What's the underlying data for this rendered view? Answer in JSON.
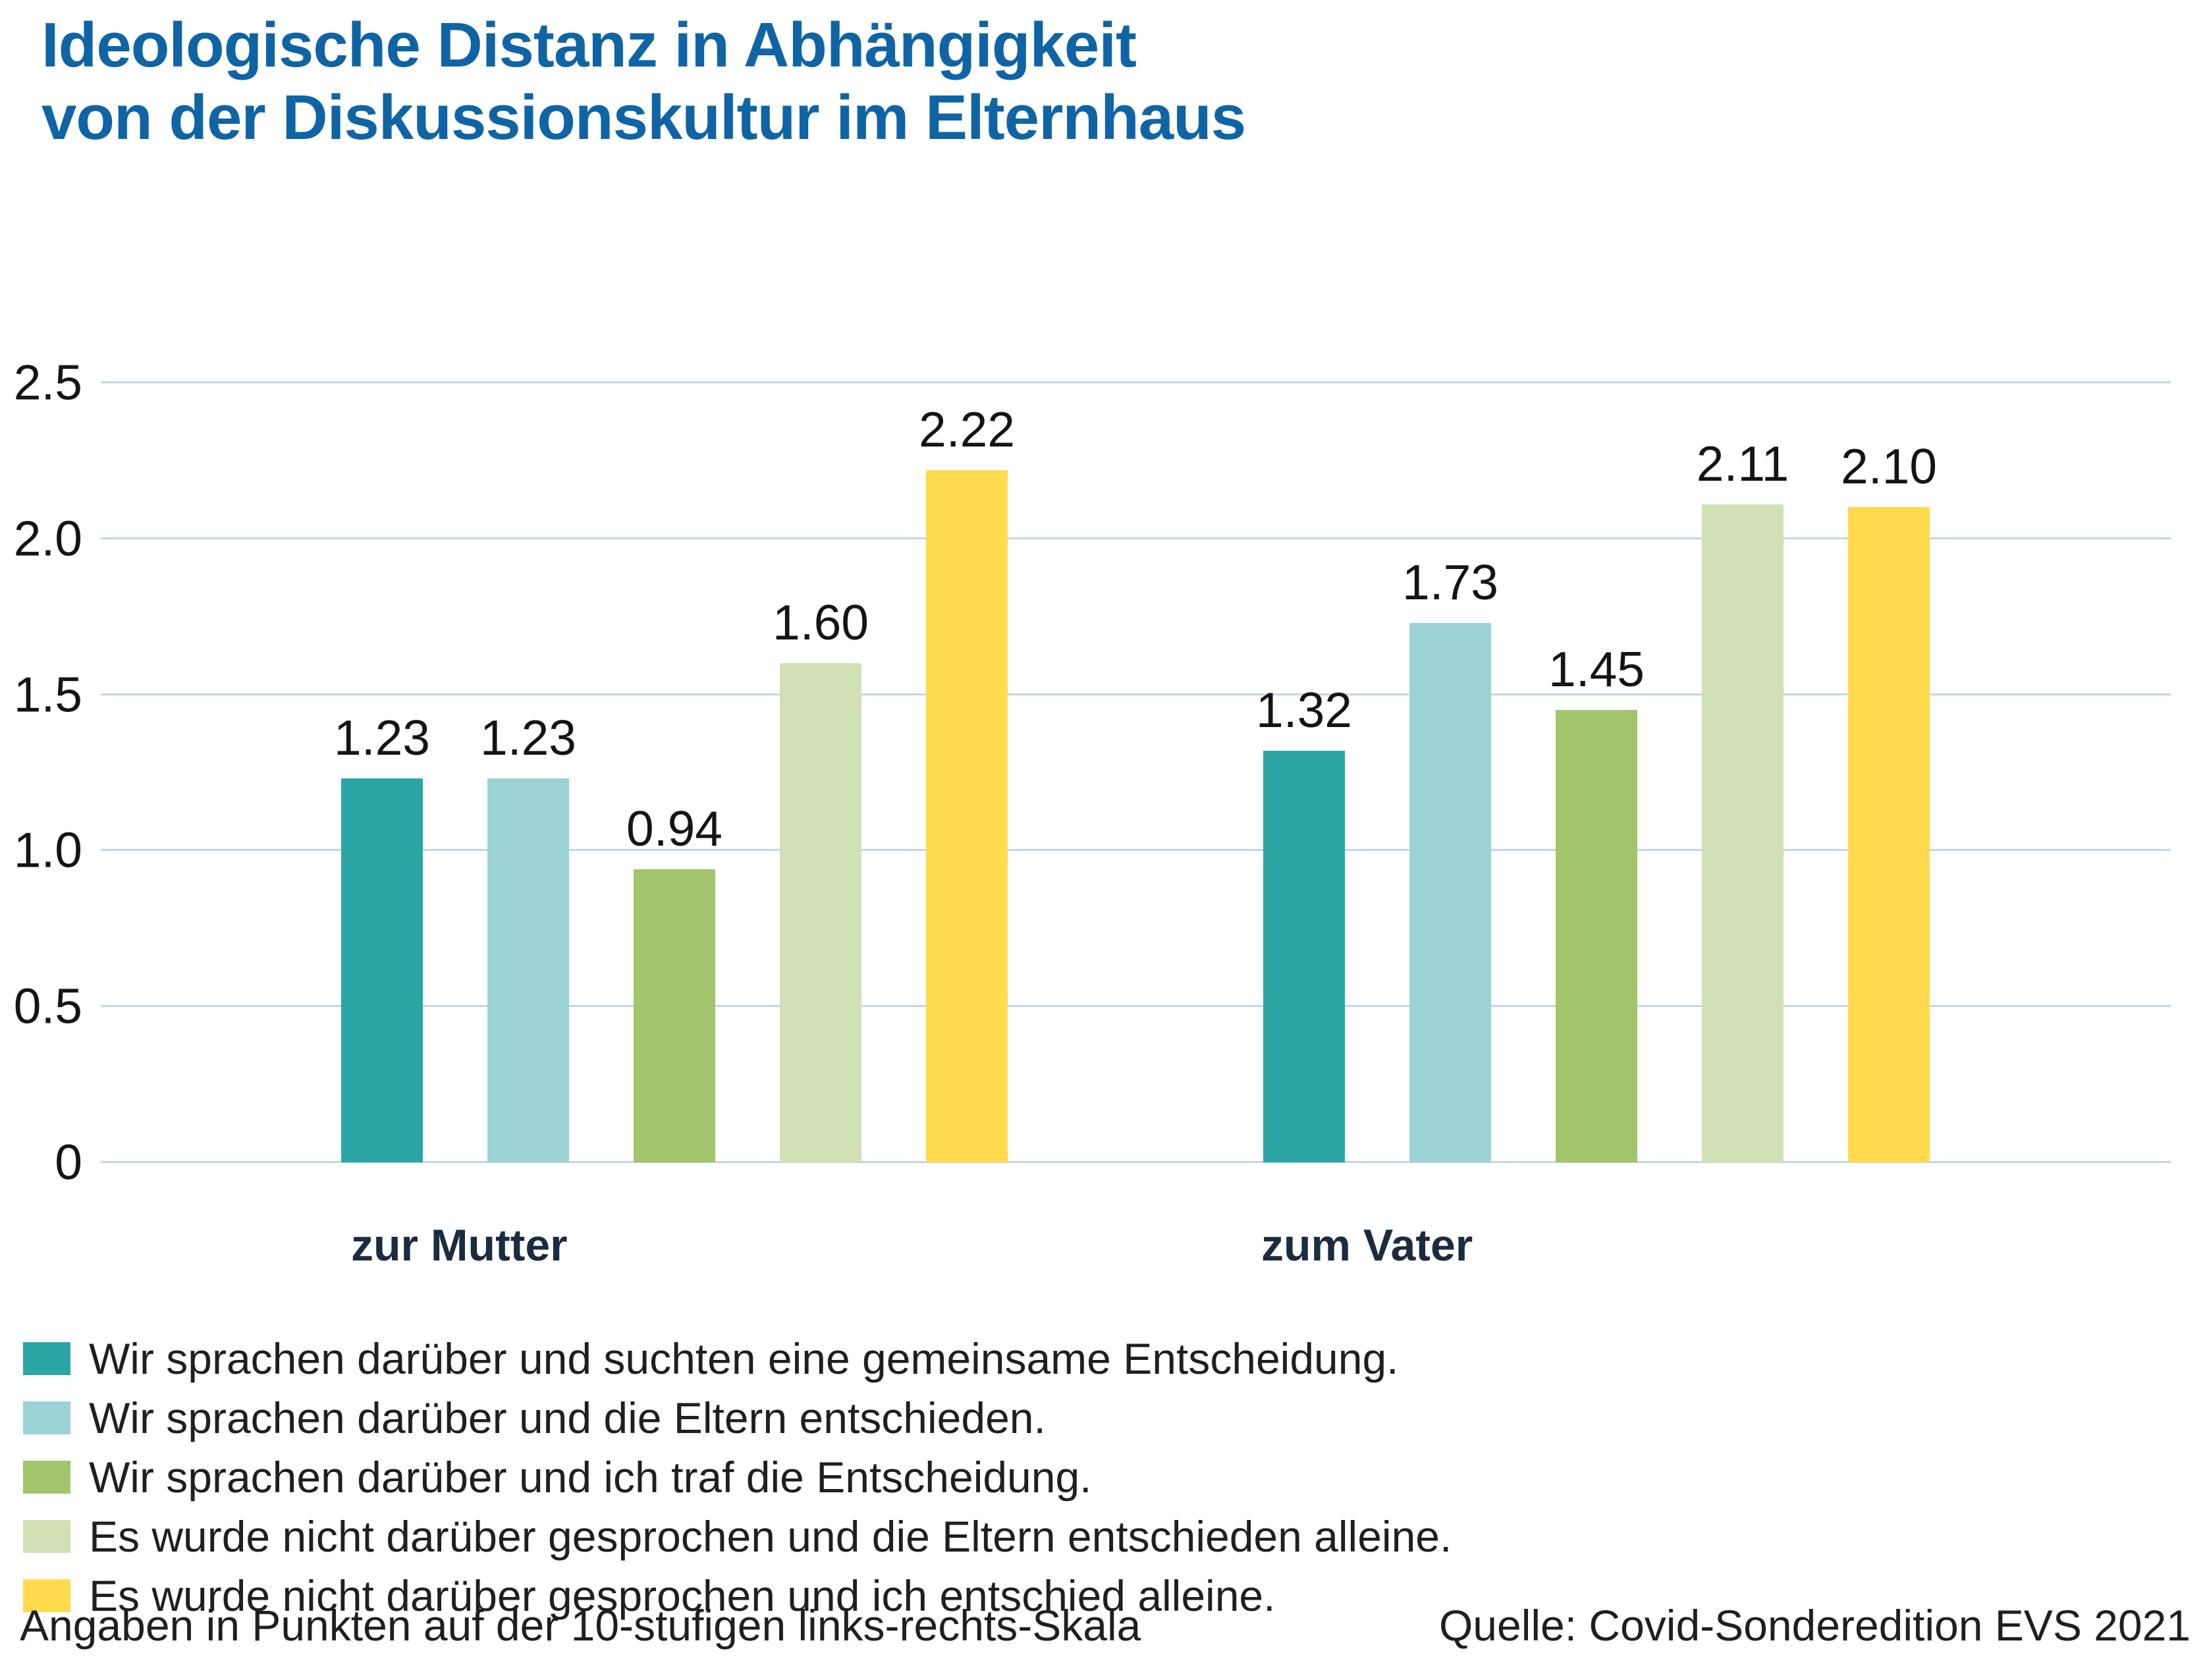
{
  "title": {
    "line1": "Ideologische Distanz in Abhängigkeit",
    "line2": "von der Diskussionskultur im Elternhaus"
  },
  "chart_data": {
    "type": "bar",
    "title": "Ideologische Distanz in Abhängigkeit von der Diskussionskultur im Elternhaus",
    "categories": [
      "zur Mutter",
      "zum Vater"
    ],
    "series": [
      {
        "name": "Wir sprachen darüber und suchten eine gemeinsame Entscheidung.",
        "color": "#2ba6a5",
        "values": [
          1.23,
          1.32
        ],
        "value_labels": [
          "1.23",
          "1.32"
        ]
      },
      {
        "name": "Wir sprachen darüber und die Eltern entschieden.",
        "color": "#9ad2d6",
        "values": [
          1.23,
          1.73
        ],
        "value_labels": [
          "1.23",
          "1.73"
        ]
      },
      {
        "name": "Wir sprachen darüber und ich traf die Entscheidung.",
        "color": "#a1c56a",
        "values": [
          0.94,
          1.45
        ],
        "value_labels": [
          "0.94",
          "1.45"
        ]
      },
      {
        "name": "Es wurde nicht darüber gesprochen und die Eltern entschieden alleine.",
        "color": "#d2e0b6",
        "values": [
          1.6,
          2.11
        ],
        "value_labels": [
          "1.60",
          "2.11"
        ]
      },
      {
        "name": "Es wurde nicht darüber gesprochen und ich entschied alleine.",
        "color": "#ffda4d",
        "values": [
          2.22,
          2.1
        ],
        "value_labels": [
          "2.22",
          "2.10"
        ]
      }
    ],
    "y_axis": {
      "min": 0,
      "max": 2.5,
      "tick_labels": [
        "0",
        "0.5",
        "1.0",
        "1.5",
        "2.0",
        "2.5"
      ],
      "tick_values": [
        0,
        0.5,
        1.0,
        1.5,
        2.0,
        2.5
      ]
    },
    "grid": true,
    "legend_position": "bottom"
  },
  "footer": {
    "left": "Angaben in Punkten auf der 10-stufigen links-rechts-Skala",
    "right": "Quelle: Covid-Sonderedition EVS 2021"
  },
  "colors": {
    "title": "#0f64a5",
    "gridline": "#c3d7e7",
    "axis_label": "#141414",
    "group_label": "#1b2b40",
    "legend_text": "#1f1f1f"
  }
}
